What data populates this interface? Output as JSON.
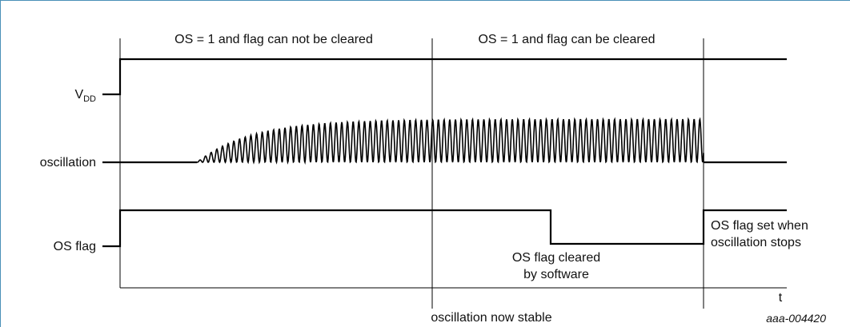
{
  "phase_labels": {
    "phase1": "OS = 1 and flag can not be cleared",
    "phase2": "OS = 1 and flag can be cleared"
  },
  "signals": {
    "vdd_main": "V",
    "vdd_sub": "DD",
    "oscillation": "oscillation",
    "os_flag": "OS flag"
  },
  "annotations": {
    "flag_cleared_line1": "OS flag cleared",
    "flag_cleared_line2": "by software",
    "flag_set_line1": "OS flag set when",
    "flag_set_line2": "oscillation stops",
    "stable": "oscillation now stable",
    "time_axis": "t",
    "figure_id": "aaa-004420"
  },
  "colors": {
    "line": "#000000",
    "text": "#111111",
    "frame": "#4a90b8"
  }
}
